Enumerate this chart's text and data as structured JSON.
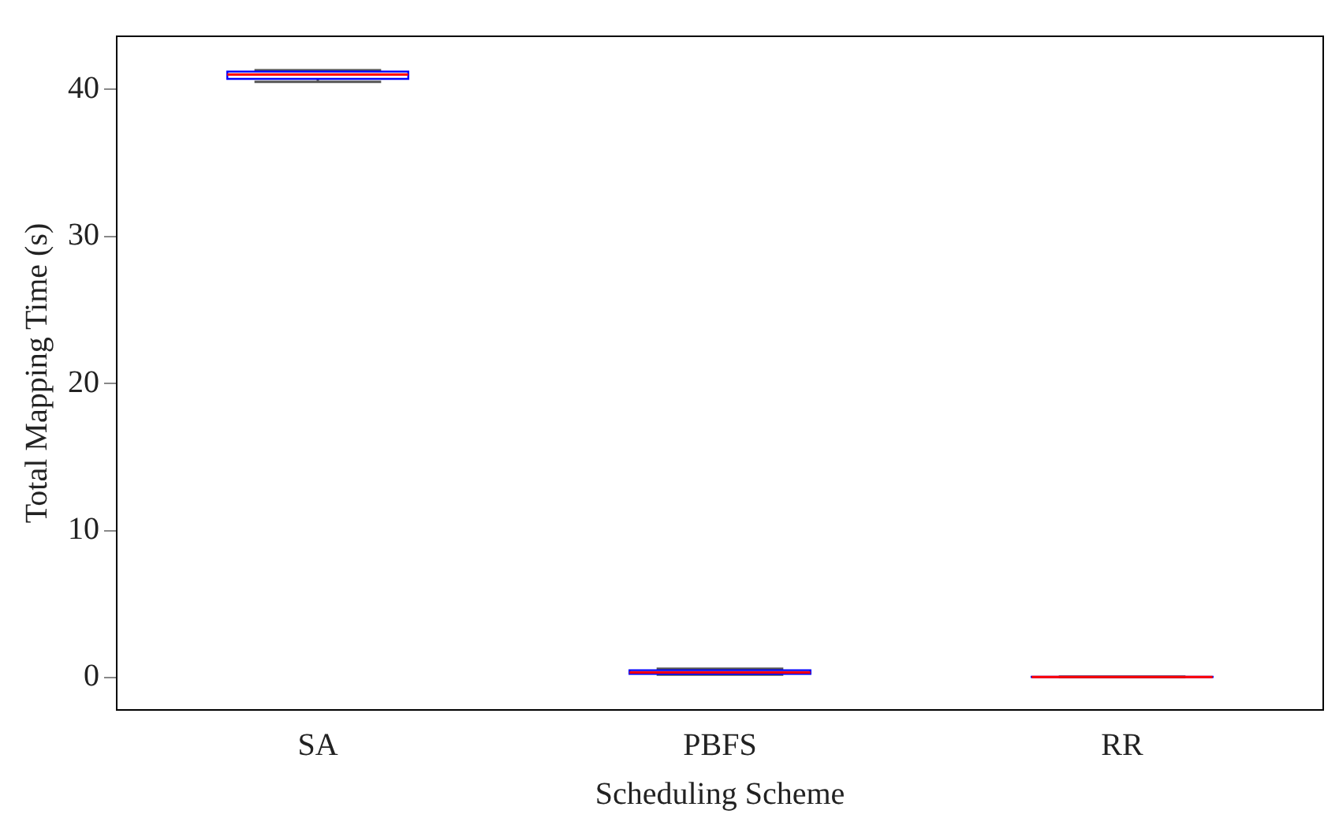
{
  "chart_data": {
    "type": "box",
    "xlabel": "Scheduling Scheme",
    "ylabel": "Total Mapping Time (s)",
    "categories": [
      "SA",
      "PBFS",
      "RR"
    ],
    "boxes": [
      {
        "low": 40.5,
        "q1": 40.7,
        "median": 41.0,
        "q3": 41.2,
        "high": 41.3
      },
      {
        "low": 0.2,
        "q1": 0.25,
        "median": 0.35,
        "q3": 0.5,
        "high": 0.6
      },
      {
        "low": 0.02,
        "q1": 0.03,
        "median": 0.04,
        "q3": 0.05,
        "high": 0.06
      }
    ],
    "color": "#0000ff",
    "ylim": [
      -2.2,
      43.6
    ],
    "yticks": [
      0,
      10,
      20,
      30,
      40
    ],
    "grid": false
  }
}
